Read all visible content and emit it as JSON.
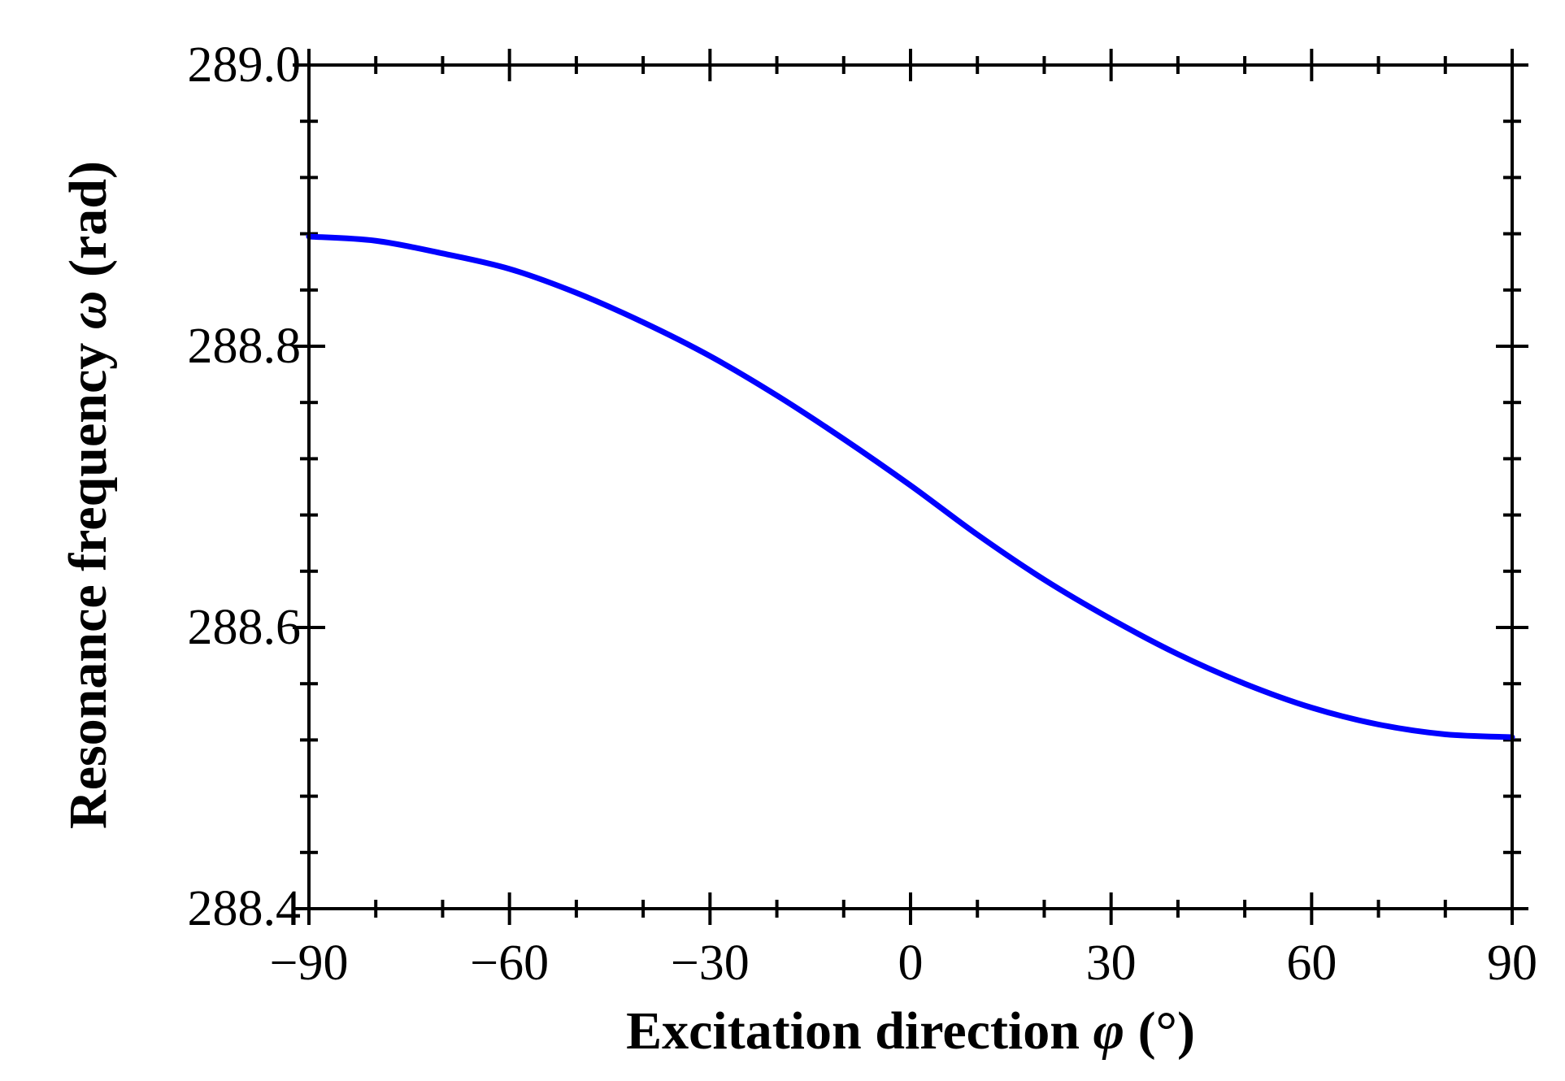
{
  "chart_data": {
    "type": "line",
    "xlabel": {
      "prefix": "Excitation direction ",
      "symbol": "φ",
      "suffix": " (°)"
    },
    "ylabel": {
      "prefix": "Resonance frequency ",
      "symbol": "ω",
      "suffix": " (rad)"
    },
    "xlim": [
      -90,
      90
    ],
    "ylim": [
      288.4,
      289.0
    ],
    "x_ticks": [
      -90,
      -60,
      -30,
      0,
      30,
      60,
      90
    ],
    "x_tick_labels": [
      "−90",
      "−60",
      "−30",
      "0",
      "30",
      "60",
      "90"
    ],
    "x_minor_step": 10,
    "y_ticks": [
      288.4,
      288.6,
      288.8,
      289.0
    ],
    "y_tick_labels": [
      "288.4",
      "288.6",
      "288.8",
      "289.0"
    ],
    "y_minor_step": 0.04,
    "grid": false,
    "series": [
      {
        "color": "#0000ff",
        "x": [
          -90,
          -80,
          -70,
          -60,
          -50,
          -40,
          -30,
          -20,
          -10,
          0,
          10,
          20,
          30,
          40,
          50,
          60,
          70,
          80,
          90
        ],
        "y": [
          288.878,
          288.875,
          288.866,
          288.855,
          288.838,
          288.817,
          288.793,
          288.765,
          288.734,
          288.701,
          288.666,
          288.634,
          288.606,
          288.581,
          288.56,
          288.543,
          288.531,
          288.524,
          288.522
        ]
      }
    ]
  }
}
